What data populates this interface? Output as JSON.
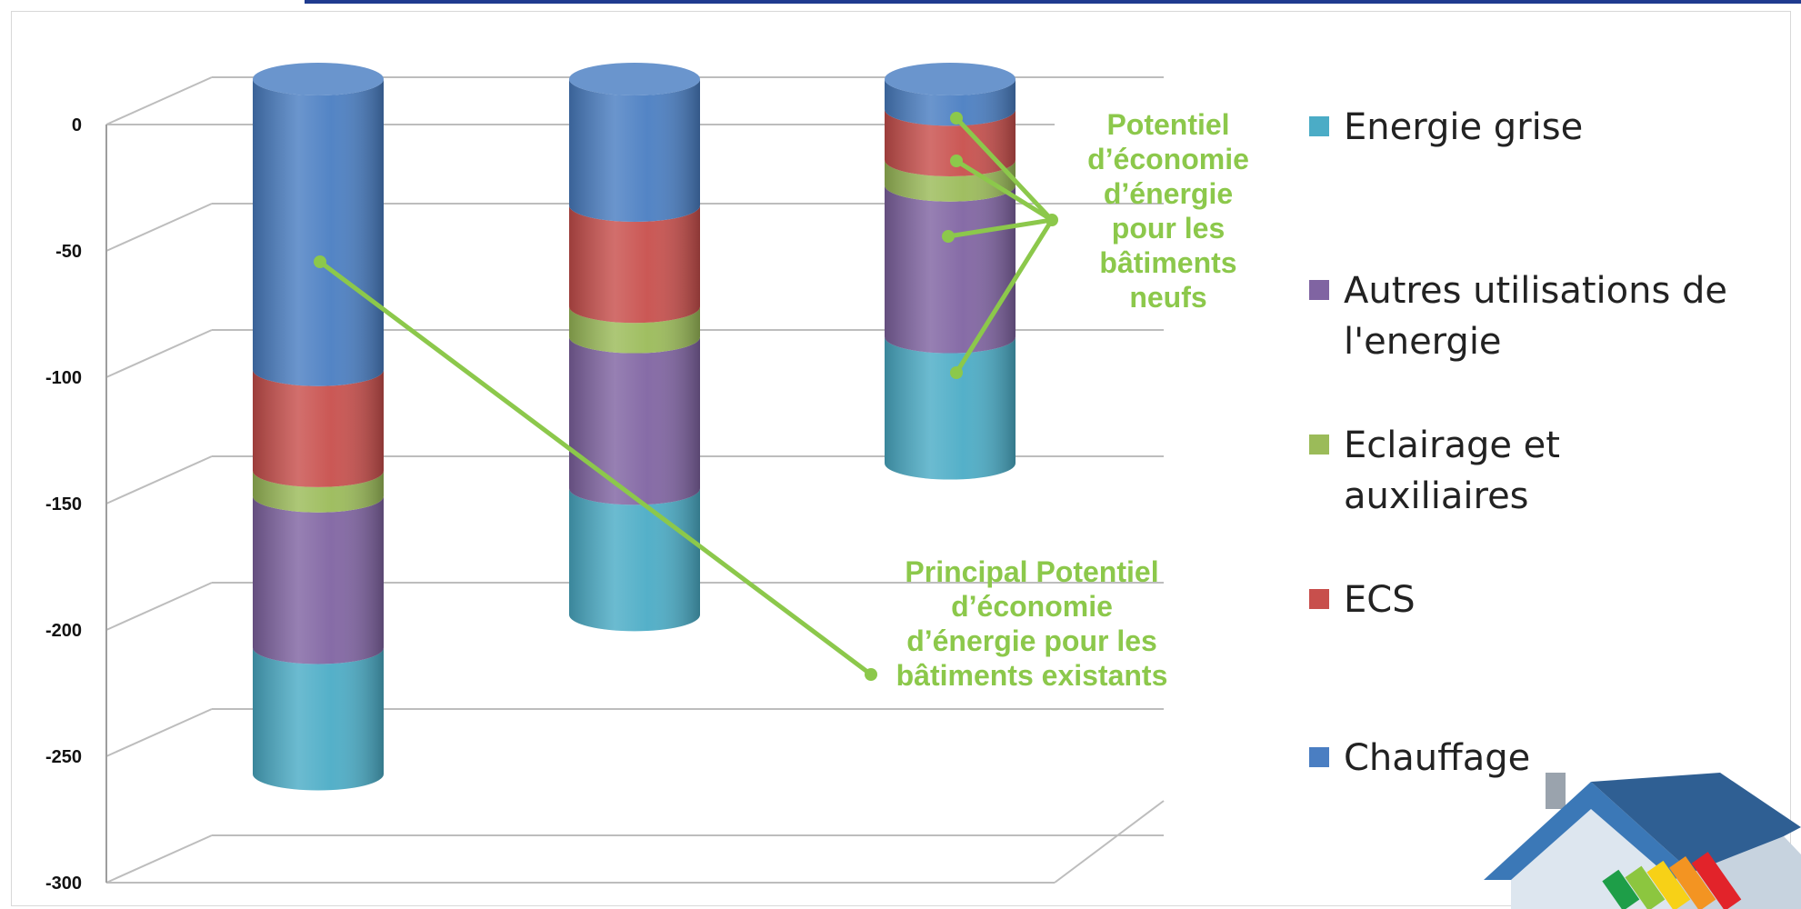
{
  "chart_data": {
    "type": "bar",
    "orientation": "vertical-stacked-3d-cylinder",
    "categories": [
      "",
      "",
      ""
    ],
    "ylim": [
      -300,
      0
    ],
    "yticks": [
      "0",
      "-50",
      "-100",
      "-150",
      "-200",
      "-250",
      "-300"
    ],
    "ytick_values": [
      0,
      -50,
      -100,
      -150,
      -200,
      -250,
      -300
    ],
    "grid": true,
    "legend_position": "right",
    "series": [
      {
        "name": "Chauffage",
        "color": "#4a7ec2",
        "values": [
          -115,
          -50,
          -12
        ]
      },
      {
        "name": "ECS",
        "color": "#c84f4c",
        "values": [
          -40,
          -40,
          -20
        ]
      },
      {
        "name": "Eclairage et auxiliaires",
        "color": "#9bbb59",
        "values": [
          -10,
          -12,
          -10
        ]
      },
      {
        "name": "Autres utilisations de l'energie",
        "color": "#8064a2",
        "values": [
          -60,
          -60,
          -60
        ]
      },
      {
        "name": "Energie grise",
        "color": "#4bacc6",
        "values": [
          -50,
          -50,
          -50
        ]
      }
    ],
    "annotations": [
      {
        "id": "new",
        "text": "Potentiel d’économie d’énergie pour les bâtiments neufs"
      },
      {
        "id": "existing",
        "text": "Principal Potentiel d’économie d’énergie pour les bâtiments existants"
      }
    ]
  },
  "legend": {
    "items": [
      {
        "label": "Energie grise",
        "color": "#4bacc6"
      },
      {
        "label": "Autres utilisations de l'energie",
        "color": "#8064a2"
      },
      {
        "label": "Eclairage et auxiliaires",
        "color": "#9bbb59"
      },
      {
        "label": "ECS",
        "color": "#c84f4c"
      },
      {
        "label": "Chauffage",
        "color": "#4a7ec2"
      }
    ]
  },
  "annotation_color": "#8cc84b",
  "decor": {
    "house": "energy-label-house-icon"
  }
}
